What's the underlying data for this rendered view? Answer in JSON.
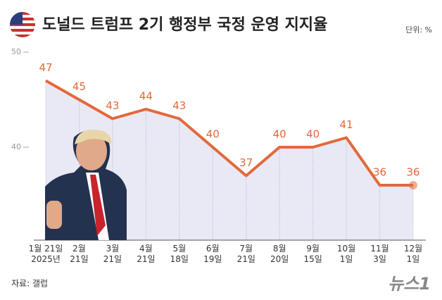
{
  "chart_data": {
    "type": "line",
    "title": "도널드 트럼프 2기 행정부 국정 운영 지지율",
    "unit": "단위: %",
    "source": "자료: 갤럽",
    "logo": "뉴스1",
    "categories": [
      "1월 21일\n2025년",
      "2월\n21일",
      "3월\n21일",
      "4월\n21일",
      "5월\n18일",
      "6월\n19일",
      "7월\n21일",
      "8월\n20일",
      "9월\n15일",
      "10월\n1일",
      "11월\n3일",
      "12월\n1일"
    ],
    "values": [
      47,
      45,
      43,
      44,
      43,
      40,
      37,
      40,
      40,
      41,
      36,
      36
    ],
    "color": "#e2693b",
    "area_color": "#e9e9f5",
    "ylim": [
      30,
      50
    ],
    "yticks": [
      40,
      50
    ]
  }
}
